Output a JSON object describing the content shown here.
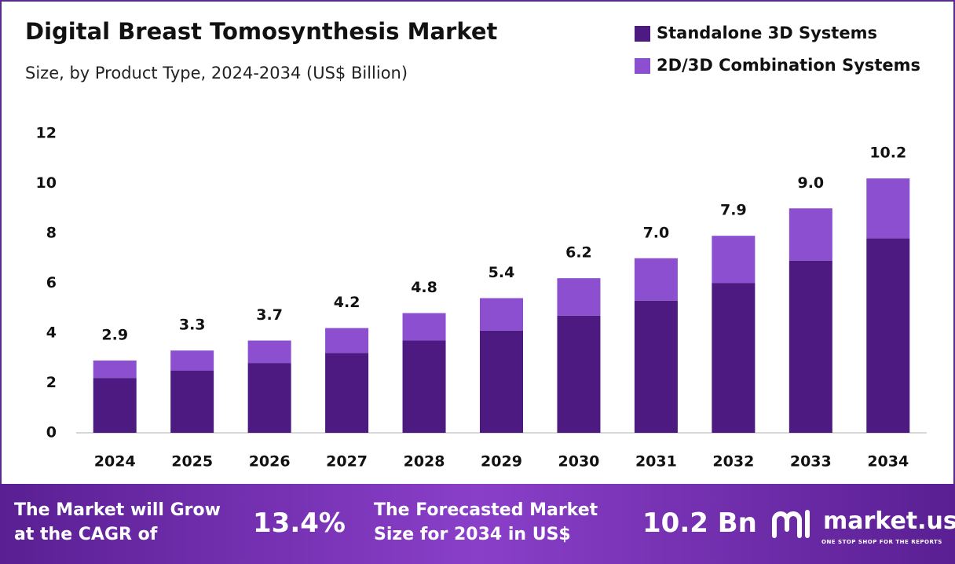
{
  "chart_data": {
    "type": "stacked-bar",
    "title": "Digital Breast Tomosynthesis Market",
    "subtitle": "Size, by Product Type, 2024-2034 (US$ Billion)",
    "categories": [
      "2024",
      "2025",
      "2026",
      "2027",
      "2028",
      "2029",
      "2030",
      "2031",
      "2032",
      "2033",
      "2034"
    ],
    "series": [
      {
        "name": "Standalone 3D Systems",
        "color": "#4c1a80",
        "values": [
          2.2,
          2.5,
          2.8,
          3.2,
          3.7,
          4.1,
          4.7,
          5.3,
          6.0,
          6.9,
          7.8
        ]
      },
      {
        "name": "2D/3D Combination Systems",
        "color": "#8c4fd0",
        "values": [
          0.7,
          0.8,
          0.9,
          1.0,
          1.1,
          1.3,
          1.5,
          1.7,
          1.9,
          2.1,
          2.4
        ]
      }
    ],
    "total_labels": [
      "2.9",
      "3.3",
      "3.7",
      "4.2",
      "4.8",
      "5.4",
      "6.2",
      "7.0",
      "7.9",
      "9.0",
      "10.2"
    ],
    "ylim": [
      0,
      12
    ],
    "yticks": [
      0,
      2,
      4,
      6,
      8,
      10,
      12
    ],
    "grid": false
  },
  "banner": {
    "cagr_text": "The Market will Grow at the CAGR of",
    "cagr_value": "13.4%",
    "forecast_text": "The Forecasted Market Size for 2034 in US$",
    "forecast_value": "10.2 Bn",
    "logo": "market.us",
    "tagline": "ONE STOP SHOP FOR THE REPORTS"
  }
}
